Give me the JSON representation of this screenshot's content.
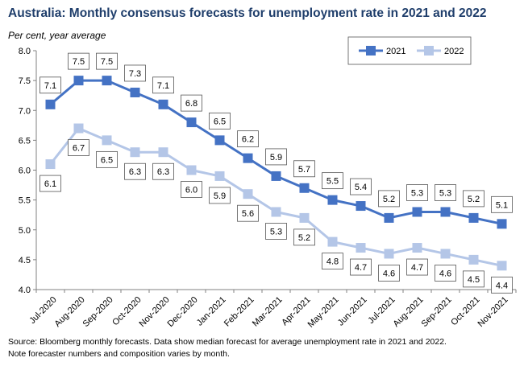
{
  "chart_data": {
    "type": "line",
    "title": "Australia: Monthly consensus forecasts for unemployment rate in 2021 and 2022",
    "ylabel": "Per cent, year average",
    "categories": [
      "Jul-2020",
      "Aug-2020",
      "Sep-2020",
      "Oct-2020",
      "Nov-2020",
      "Dec-2020",
      "Jan-2021",
      "Feb-2021",
      "Mar-2021",
      "Apr-2021",
      "May-2021",
      "Jun-2021",
      "Jul-2021",
      "Aug-2021",
      "Sep-2021",
      "Oct-2021",
      "Nov-2021"
    ],
    "y_ticks": [
      "8.0",
      "7.5",
      "7.0",
      "6.5",
      "6.0",
      "5.5",
      "5.0",
      "4.5",
      "4.0"
    ],
    "ylim": [
      4.0,
      8.0
    ],
    "series": [
      {
        "name": "2021",
        "color": "#4472c4",
        "values": [
          7.1,
          7.5,
          7.5,
          7.3,
          7.1,
          6.8,
          6.5,
          6.2,
          5.9,
          5.7,
          5.5,
          5.4,
          5.2,
          5.3,
          5.3,
          5.2,
          5.1
        ],
        "labels": [
          "7.1",
          "7.5",
          "7.5",
          "7.3",
          "7.1",
          "6.8",
          "6.5",
          "6.2",
          "5.9",
          "5.7",
          "5.5",
          "5.4",
          "5.2",
          "5.3",
          "5.3",
          "5.2",
          "5.1"
        ]
      },
      {
        "name": "2022",
        "color": "#b4c6e7",
        "values": [
          6.1,
          6.7,
          6.5,
          6.3,
          6.3,
          6.0,
          5.9,
          5.6,
          5.3,
          5.2,
          4.8,
          4.7,
          4.6,
          4.7,
          4.6,
          4.5,
          4.4
        ],
        "labels": [
          "6.1",
          "6.7",
          "6.5",
          "6.3",
          "6.3",
          "6.0",
          "5.9",
          "5.6",
          "5.3",
          "5.2",
          "4.8",
          "4.7",
          "4.6",
          "4.7",
          "4.6",
          "4.5",
          "4.4"
        ]
      }
    ],
    "legend_position": "top-right",
    "grid": false,
    "source_lines": [
      "Source: Bloomberg monthly forecasts.  Data show median forecast for average unemployment rate in 2021 and 2022.",
      "Note forecaster numbers and composition varies by month."
    ]
  }
}
